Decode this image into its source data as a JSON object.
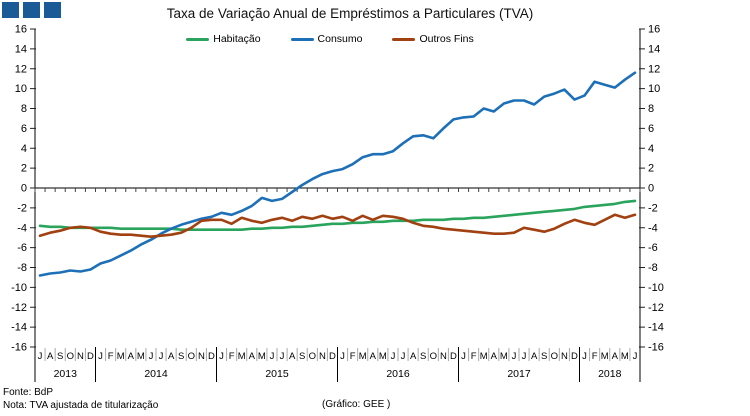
{
  "logo": {
    "color": "#1a5a96",
    "squares": 3
  },
  "title": "Taxa de Variação Anual de Empréstimos a Particulares (TVA)",
  "footer": {
    "fonte": "Fonte: BdP",
    "nota": "Nota: TVA ajustada de titularização",
    "credit": "(Gráfico: GEE )"
  },
  "chart_data": {
    "type": "line",
    "title": "Taxa de Variação Anual de Empréstimos a Particulares (TVA)",
    "xlabel": "",
    "ylabel": "",
    "ylim": [
      -16,
      16
    ],
    "ytick_step": 2,
    "grid": false,
    "legend_position": "top",
    "x_month_labels": [
      "J",
      "A",
      "S",
      "O",
      "N",
      "D",
      "J",
      "F",
      "M",
      "A",
      "M",
      "J",
      "J",
      "A",
      "S",
      "O",
      "N",
      "D",
      "J",
      "F",
      "M",
      "A",
      "M",
      "J",
      "J",
      "A",
      "S",
      "O",
      "N",
      "D",
      "J",
      "F",
      "M",
      "A",
      "M",
      "J",
      "J",
      "A",
      "S",
      "O",
      "N",
      "D",
      "J",
      "F",
      "M",
      "A",
      "M",
      "J",
      "J",
      "A",
      "S",
      "O",
      "N",
      "D",
      "J",
      "F",
      "M",
      "A",
      "M",
      "J"
    ],
    "x_year_groups": [
      {
        "year": "2013",
        "months": 6
      },
      {
        "year": "2014",
        "months": 12
      },
      {
        "year": "2015",
        "months": 12
      },
      {
        "year": "2016",
        "months": 12
      },
      {
        "year": "2017",
        "months": 12
      },
      {
        "year": "2018",
        "months": 6
      }
    ],
    "series": [
      {
        "id": "habitacao",
        "name": "Habitação",
        "color": "#2aa45c",
        "values": [
          -3.8,
          -3.9,
          -3.9,
          -4.0,
          -4.0,
          -4.0,
          -4.0,
          -4.0,
          -4.1,
          -4.1,
          -4.1,
          -4.1,
          -4.1,
          -4.1,
          -4.2,
          -4.2,
          -4.2,
          -4.2,
          -4.2,
          -4.2,
          -4.2,
          -4.1,
          -4.1,
          -4.0,
          -4.0,
          -3.9,
          -3.9,
          -3.8,
          -3.7,
          -3.6,
          -3.6,
          -3.5,
          -3.5,
          -3.4,
          -3.4,
          -3.3,
          -3.3,
          -3.3,
          -3.2,
          -3.2,
          -3.2,
          -3.1,
          -3.1,
          -3.0,
          -3.0,
          -2.9,
          -2.8,
          -2.7,
          -2.6,
          -2.5,
          -2.4,
          -2.3,
          -2.2,
          -2.1,
          -1.9,
          -1.8,
          -1.7,
          -1.6,
          -1.4,
          -1.3
        ]
      },
      {
        "id": "consumo",
        "name": "Consumo",
        "color": "#1d70b7",
        "values": [
          -8.8,
          -8.6,
          -8.5,
          -8.3,
          -8.4,
          -8.2,
          -7.6,
          -7.3,
          -6.8,
          -6.3,
          -5.7,
          -5.2,
          -4.6,
          -4.1,
          -3.7,
          -3.4,
          -3.1,
          -2.9,
          -2.5,
          -2.7,
          -2.3,
          -1.8,
          -1.0,
          -1.3,
          -1.1,
          -0.4,
          0.3,
          0.9,
          1.4,
          1.7,
          1.9,
          2.4,
          3.1,
          3.4,
          3.4,
          3.7,
          4.5,
          5.2,
          5.3,
          5.0,
          6.0,
          6.9,
          7.1,
          7.2,
          8.0,
          7.7,
          8.5,
          8.8,
          8.8,
          8.4,
          9.2,
          9.5,
          9.9,
          8.9,
          9.3,
          10.7,
          10.4,
          10.1,
          10.9,
          11.6
        ]
      },
      {
        "id": "outros-fins",
        "name": "Outros Fins",
        "color": "#a14010",
        "values": [
          -4.8,
          -4.5,
          -4.3,
          -4.0,
          -3.9,
          -4.0,
          -4.4,
          -4.6,
          -4.7,
          -4.7,
          -4.8,
          -4.9,
          -4.8,
          -4.7,
          -4.5,
          -4.0,
          -3.3,
          -3.2,
          -3.2,
          -3.6,
          -3.0,
          -3.3,
          -3.5,
          -3.2,
          -3.0,
          -3.3,
          -2.9,
          -3.1,
          -2.8,
          -3.1,
          -2.9,
          -3.3,
          -2.8,
          -3.2,
          -2.8,
          -2.9,
          -3.1,
          -3.5,
          -3.8,
          -3.9,
          -4.1,
          -4.2,
          -4.3,
          -4.4,
          -4.5,
          -4.6,
          -4.6,
          -4.5,
          -4.0,
          -4.2,
          -4.4,
          -4.1,
          -3.6,
          -3.2,
          -3.5,
          -3.7,
          -3.2,
          -2.7,
          -3.0,
          -2.7
        ]
      }
    ]
  }
}
